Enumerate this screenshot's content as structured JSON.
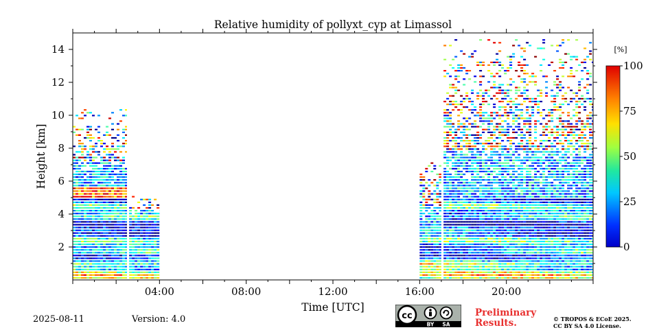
{
  "chart_data": {
    "type": "heatmap",
    "title": "Relative humidity of pollyxt_cyp at Limassol",
    "xlabel": "Time [UTC]",
    "ylabel": "Height [km]",
    "x_range_hours": [
      0,
      24
    ],
    "y_range_km": [
      0,
      15
    ],
    "x_ticks": [
      {
        "hour": 4,
        "label": "04:00"
      },
      {
        "hour": 8,
        "label": "08:00"
      },
      {
        "hour": 12,
        "label": "12:00"
      },
      {
        "hour": 16,
        "label": "16:00"
      },
      {
        "hour": 20,
        "label": "20:00"
      }
    ],
    "y_ticks": [
      {
        "km": 2,
        "label": "2"
      },
      {
        "km": 4,
        "label": "4"
      },
      {
        "km": 6,
        "label": "6"
      },
      {
        "km": 8,
        "label": "8"
      },
      {
        "km": 10,
        "label": "10"
      },
      {
        "km": 12,
        "label": "12"
      },
      {
        "km": 14,
        "label": "14"
      }
    ],
    "colorbar": {
      "unit": "[%]",
      "range": [
        0,
        100
      ],
      "ticks": [
        {
          "value": 0,
          "label": "0"
        },
        {
          "value": 25,
          "label": "25"
        },
        {
          "value": 50,
          "label": "50"
        },
        {
          "value": 75,
          "label": "75"
        },
        {
          "value": 100,
          "label": "100"
        }
      ],
      "colormap": "jet"
    },
    "data_segments": [
      {
        "start_hour": 0.0,
        "end_hour": 2.5,
        "layer_top_km": 5.6,
        "noise_top_km": 10.3
      },
      {
        "start_hour": 2.6,
        "end_hour": 4.0,
        "layer_top_km": 3.8,
        "noise_top_km": 5.0
      },
      {
        "start_hour": 16.0,
        "end_hour": 17.0,
        "layer_top_km": 3.2,
        "noise_top_km": 7.0
      },
      {
        "start_hour": 17.1,
        "end_hour": 24.0,
        "layer_top_km": 4.8,
        "noise_top_km": 14.5
      }
    ],
    "data_gaps_hours": [
      [
        2.5,
        2.6
      ],
      [
        4.0,
        16.0
      ],
      [
        17.0,
        17.1
      ]
    ]
  },
  "footer": {
    "date": "2025-08-11",
    "version": "Version: 4.0",
    "preliminary_line1": "Preliminary",
    "preliminary_line2": "Results.",
    "copyright_line1": "© TROPOS & ECoE 2025.",
    "copyright_line2": "CC BY SA 4.0 License.",
    "license_badge": {
      "cc": "cc",
      "by": "BY",
      "sa": "SA"
    }
  }
}
